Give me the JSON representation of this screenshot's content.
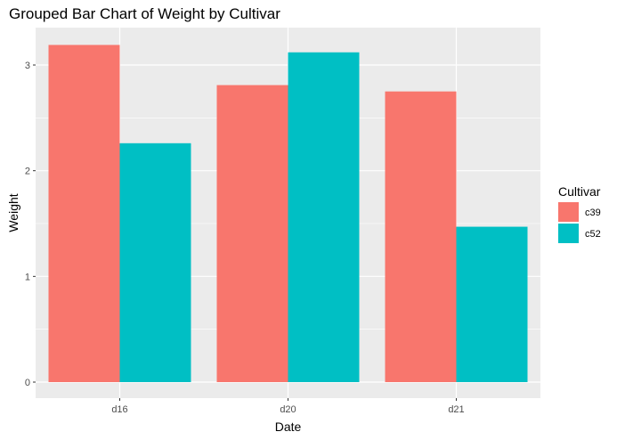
{
  "chart_data": {
    "type": "bar",
    "title": "Grouped Bar Chart of Weight by Cultivar",
    "xlabel": "Date",
    "ylabel": "Weight",
    "categories": [
      "d16",
      "d20",
      "d21"
    ],
    "series": [
      {
        "name": "c39",
        "color": "#F8766D",
        "values": [
          3.19,
          2.81,
          2.75
        ]
      },
      {
        "name": "c52",
        "color": "#00BFC4",
        "values": [
          2.26,
          3.12,
          1.47
        ]
      }
    ],
    "yticks": [
      "0",
      "1",
      "2",
      "3"
    ],
    "ylim": [
      0,
      3.35
    ],
    "grid": true,
    "legend": {
      "title": "Cultivar",
      "position": "right"
    },
    "panel_color": "#EBEBEB",
    "grid_color": "#FFFFFF"
  }
}
